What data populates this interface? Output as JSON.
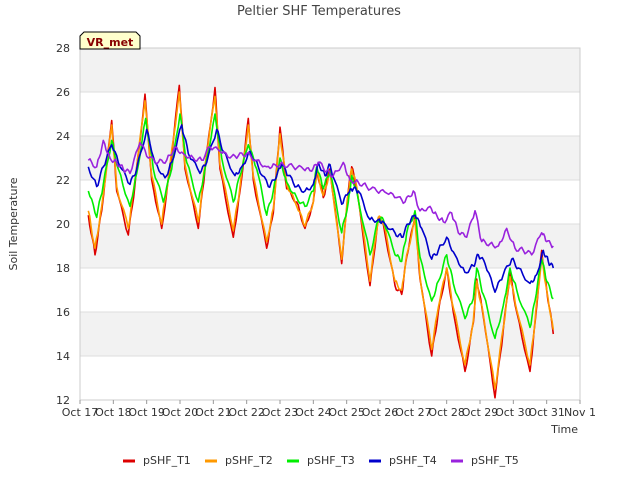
{
  "chart_data": {
    "type": "line",
    "title": "Peltier SHF Temperatures",
    "xlabel": "Time",
    "ylabel": "Soil Temperature",
    "badge": "VR_met",
    "xlim": [
      17,
      32
    ],
    "ylim": [
      12,
      28
    ],
    "x_ticks": [
      {
        "value": 17,
        "label": "Oct 17"
      },
      {
        "value": 18,
        "label": "Oct 18"
      },
      {
        "value": 19,
        "label": "Oct 19"
      },
      {
        "value": 20,
        "label": "Oct 20"
      },
      {
        "value": 21,
        "label": "Oct 21"
      },
      {
        "value": 22,
        "label": "Oct 22"
      },
      {
        "value": 23,
        "label": "Oct 23"
      },
      {
        "value": 24,
        "label": "Oct 24"
      },
      {
        "value": 25,
        "label": "Oct 25"
      },
      {
        "value": 26,
        "label": "Oct 26"
      },
      {
        "value": 27,
        "label": "Oct 27"
      },
      {
        "value": 28,
        "label": "Oct 28"
      },
      {
        "value": 29,
        "label": "Oct 29"
      },
      {
        "value": 30,
        "label": "Oct 30"
      },
      {
        "value": 31,
        "label": "Oct 31"
      },
      {
        "value": 32,
        "label": "Nov 1"
      }
    ],
    "y_ticks": [
      12,
      14,
      16,
      18,
      20,
      22,
      24,
      26,
      28
    ],
    "grid": true,
    "legend_position": "bottom",
    "series": [
      {
        "name": "pSHF_T1",
        "color": "#dd0000",
        "points": [
          [
            17.25,
            20.4
          ],
          [
            17.45,
            18.6
          ],
          [
            17.65,
            20.6
          ],
          [
            17.95,
            24.7
          ],
          [
            18.1,
            21.5
          ],
          [
            18.45,
            19.5
          ],
          [
            18.65,
            21.8
          ],
          [
            18.95,
            25.9
          ],
          [
            19.15,
            22.0
          ],
          [
            19.45,
            19.8
          ],
          [
            19.7,
            22.5
          ],
          [
            19.98,
            26.3
          ],
          [
            20.15,
            22.5
          ],
          [
            20.55,
            19.8
          ],
          [
            20.75,
            22.5
          ],
          [
            21.05,
            26.2
          ],
          [
            21.2,
            22.5
          ],
          [
            21.6,
            19.4
          ],
          [
            21.8,
            21.5
          ],
          [
            22.05,
            24.8
          ],
          [
            22.2,
            22.0
          ],
          [
            22.6,
            18.9
          ],
          [
            22.8,
            20.5
          ],
          [
            23.0,
            24.4
          ],
          [
            23.2,
            21.6
          ],
          [
            23.5,
            21.0
          ],
          [
            23.75,
            19.8
          ],
          [
            24.0,
            21.0
          ],
          [
            24.1,
            22.5
          ],
          [
            24.3,
            21.2
          ],
          [
            24.5,
            22.5
          ],
          [
            24.85,
            18.2
          ],
          [
            25.05,
            21.5
          ],
          [
            25.15,
            22.6
          ],
          [
            25.3,
            21.6
          ],
          [
            25.7,
            17.2
          ],
          [
            25.95,
            20.3
          ],
          [
            26.1,
            20.0
          ],
          [
            26.45,
            17.2
          ],
          [
            26.65,
            16.8
          ],
          [
            26.8,
            18.5
          ],
          [
            27.05,
            20.3
          ],
          [
            27.2,
            17.5
          ],
          [
            27.55,
            14.0
          ],
          [
            27.75,
            16.0
          ],
          [
            28.0,
            18.0
          ],
          [
            28.2,
            16.0
          ],
          [
            28.55,
            13.3
          ],
          [
            28.8,
            15.5
          ],
          [
            28.9,
            17.5
          ],
          [
            29.1,
            15.8
          ],
          [
            29.45,
            12.1
          ],
          [
            29.7,
            15.2
          ],
          [
            29.9,
            17.8
          ],
          [
            30.1,
            16.0
          ],
          [
            30.5,
            13.3
          ],
          [
            30.65,
            15.5
          ],
          [
            30.85,
            18.8
          ],
          [
            31.0,
            17.0
          ],
          [
            31.2,
            15.0
          ]
        ]
      },
      {
        "name": "pSHF_T2",
        "color": "#ff9900",
        "points": [
          [
            17.25,
            20.6
          ],
          [
            17.45,
            18.9
          ],
          [
            17.65,
            20.8
          ],
          [
            17.95,
            24.5
          ],
          [
            18.1,
            21.7
          ],
          [
            18.45,
            19.8
          ],
          [
            18.65,
            22.0
          ],
          [
            18.95,
            25.6
          ],
          [
            19.15,
            22.2
          ],
          [
            19.45,
            20.0
          ],
          [
            19.7,
            22.7
          ],
          [
            19.98,
            26.0
          ],
          [
            20.15,
            22.7
          ],
          [
            20.55,
            20.1
          ],
          [
            20.75,
            22.7
          ],
          [
            21.05,
            25.8
          ],
          [
            21.2,
            22.7
          ],
          [
            21.6,
            19.7
          ],
          [
            21.8,
            21.7
          ],
          [
            22.05,
            24.5
          ],
          [
            22.2,
            22.2
          ],
          [
            22.6,
            19.2
          ],
          [
            22.8,
            20.7
          ],
          [
            23.0,
            24.1
          ],
          [
            23.2,
            21.8
          ],
          [
            23.5,
            20.8
          ],
          [
            23.75,
            19.9
          ],
          [
            24.0,
            21.0
          ],
          [
            24.1,
            22.4
          ],
          [
            24.3,
            21.3
          ],
          [
            24.5,
            22.4
          ],
          [
            24.85,
            18.4
          ],
          [
            25.05,
            21.5
          ],
          [
            25.15,
            22.5
          ],
          [
            25.3,
            21.7
          ],
          [
            25.7,
            17.4
          ],
          [
            25.95,
            20.3
          ],
          [
            26.1,
            20.1
          ],
          [
            26.45,
            17.4
          ],
          [
            26.65,
            17.0
          ],
          [
            26.8,
            18.6
          ],
          [
            27.05,
            20.2
          ],
          [
            27.2,
            17.6
          ],
          [
            27.55,
            14.3
          ],
          [
            27.75,
            16.2
          ],
          [
            28.0,
            18.0
          ],
          [
            28.2,
            16.2
          ],
          [
            28.55,
            13.6
          ],
          [
            28.8,
            15.6
          ],
          [
            28.9,
            17.4
          ],
          [
            29.1,
            15.9
          ],
          [
            29.45,
            12.5
          ],
          [
            29.7,
            15.3
          ],
          [
            29.9,
            17.6
          ],
          [
            30.1,
            16.1
          ],
          [
            30.5,
            13.6
          ],
          [
            30.65,
            15.6
          ],
          [
            30.85,
            18.5
          ],
          [
            31.0,
            17.0
          ],
          [
            31.2,
            15.2
          ]
        ]
      },
      {
        "name": "pSHF_T3",
        "color": "#00ee00",
        "points": [
          [
            17.25,
            21.5
          ],
          [
            17.5,
            20.3
          ],
          [
            17.7,
            21.8
          ],
          [
            17.95,
            23.8
          ],
          [
            18.15,
            22.5
          ],
          [
            18.5,
            20.8
          ],
          [
            18.7,
            22.3
          ],
          [
            18.97,
            24.8
          ],
          [
            19.2,
            22.5
          ],
          [
            19.5,
            21.0
          ],
          [
            19.75,
            22.5
          ],
          [
            20.0,
            25.0
          ],
          [
            20.2,
            22.8
          ],
          [
            20.55,
            21.0
          ],
          [
            20.75,
            22.5
          ],
          [
            21.05,
            25.0
          ],
          [
            21.25,
            23.0
          ],
          [
            21.6,
            21.0
          ],
          [
            21.8,
            22.2
          ],
          [
            22.05,
            23.6
          ],
          [
            22.3,
            22.5
          ],
          [
            22.6,
            20.4
          ],
          [
            22.8,
            21.5
          ],
          [
            23.0,
            23.0
          ],
          [
            23.2,
            21.9
          ],
          [
            23.5,
            21.2
          ],
          [
            23.75,
            20.8
          ],
          [
            24.0,
            21.5
          ],
          [
            24.1,
            22.6
          ],
          [
            24.3,
            21.6
          ],
          [
            24.5,
            22.4
          ],
          [
            24.85,
            19.6
          ],
          [
            25.05,
            21.0
          ],
          [
            25.15,
            22.2
          ],
          [
            25.3,
            21.5
          ],
          [
            25.7,
            18.6
          ],
          [
            25.95,
            20.2
          ],
          [
            26.1,
            20.2
          ],
          [
            26.45,
            18.6
          ],
          [
            26.65,
            18.3
          ],
          [
            26.8,
            19.6
          ],
          [
            27.05,
            20.6
          ],
          [
            27.2,
            18.5
          ],
          [
            27.55,
            16.5
          ],
          [
            27.75,
            17.4
          ],
          [
            28.0,
            18.6
          ],
          [
            28.2,
            17.3
          ],
          [
            28.55,
            15.7
          ],
          [
            28.8,
            16.6
          ],
          [
            28.9,
            18.0
          ],
          [
            29.1,
            16.8
          ],
          [
            29.45,
            14.8
          ],
          [
            29.7,
            16.3
          ],
          [
            29.9,
            18.0
          ],
          [
            30.1,
            17.0
          ],
          [
            30.5,
            15.3
          ],
          [
            30.65,
            16.5
          ],
          [
            30.85,
            18.4
          ],
          [
            31.0,
            17.4
          ],
          [
            31.2,
            16.6
          ]
        ]
      },
      {
        "name": "pSHF_T4",
        "color": "#0000cc",
        "points": [
          [
            17.25,
            22.6
          ],
          [
            17.5,
            21.7
          ],
          [
            17.7,
            22.6
          ],
          [
            17.95,
            23.6
          ],
          [
            18.2,
            22.6
          ],
          [
            18.5,
            21.8
          ],
          [
            18.7,
            22.5
          ],
          [
            19.0,
            24.3
          ],
          [
            19.25,
            22.8
          ],
          [
            19.55,
            22.1
          ],
          [
            19.75,
            22.8
          ],
          [
            20.05,
            24.5
          ],
          [
            20.25,
            23.2
          ],
          [
            20.6,
            22.3
          ],
          [
            20.8,
            22.8
          ],
          [
            21.1,
            24.3
          ],
          [
            21.3,
            23.3
          ],
          [
            21.65,
            22.2
          ],
          [
            21.85,
            22.6
          ],
          [
            22.1,
            23.3
          ],
          [
            22.35,
            22.6
          ],
          [
            22.65,
            21.7
          ],
          [
            22.85,
            22.0
          ],
          [
            23.05,
            22.7
          ],
          [
            23.25,
            22.2
          ],
          [
            23.5,
            21.7
          ],
          [
            23.75,
            21.5
          ],
          [
            24.0,
            21.8
          ],
          [
            24.15,
            22.8
          ],
          [
            24.35,
            22.2
          ],
          [
            24.5,
            22.7
          ],
          [
            24.85,
            20.9
          ],
          [
            25.05,
            21.4
          ],
          [
            25.2,
            21.6
          ],
          [
            25.35,
            21.5
          ],
          [
            25.7,
            20.2
          ],
          [
            25.95,
            20.2
          ],
          [
            26.1,
            20.1
          ],
          [
            26.45,
            19.6
          ],
          [
            26.65,
            19.4
          ],
          [
            26.85,
            20.0
          ],
          [
            27.05,
            20.4
          ],
          [
            27.25,
            19.8
          ],
          [
            27.55,
            18.4
          ],
          [
            27.75,
            18.8
          ],
          [
            28.0,
            19.4
          ],
          [
            28.25,
            18.6
          ],
          [
            28.55,
            17.8
          ],
          [
            28.8,
            18.1
          ],
          [
            28.95,
            18.6
          ],
          [
            29.15,
            18.2
          ],
          [
            29.45,
            16.9
          ],
          [
            29.7,
            17.7
          ],
          [
            29.95,
            18.4
          ],
          [
            30.15,
            18.0
          ],
          [
            30.5,
            17.3
          ],
          [
            30.7,
            17.7
          ],
          [
            30.9,
            18.8
          ],
          [
            31.05,
            18.3
          ],
          [
            31.2,
            18.0
          ]
        ]
      },
      {
        "name": "pSHF_T5",
        "color": "#9922dd",
        "points": [
          [
            17.25,
            22.9
          ],
          [
            17.5,
            22.6
          ],
          [
            17.7,
            23.8
          ],
          [
            17.9,
            23.0
          ],
          [
            18.1,
            22.8
          ],
          [
            18.3,
            22.5
          ],
          [
            18.5,
            22.3
          ],
          [
            18.8,
            23.7
          ],
          [
            19.05,
            23.0
          ],
          [
            19.35,
            22.8
          ],
          [
            19.6,
            22.9
          ],
          [
            19.85,
            23.5
          ],
          [
            20.1,
            23.2
          ],
          [
            20.4,
            23.0
          ],
          [
            20.65,
            22.9
          ],
          [
            20.9,
            23.5
          ],
          [
            21.2,
            23.3
          ],
          [
            21.5,
            23.0
          ],
          [
            21.75,
            23.1
          ],
          [
            22.0,
            23.2
          ],
          [
            22.3,
            22.9
          ],
          [
            22.6,
            22.6
          ],
          [
            22.85,
            22.7
          ],
          [
            23.1,
            22.7
          ],
          [
            23.4,
            22.6
          ],
          [
            23.7,
            22.5
          ],
          [
            23.95,
            22.4
          ],
          [
            24.15,
            22.8
          ],
          [
            24.4,
            22.4
          ],
          [
            24.6,
            22.2
          ],
          [
            24.9,
            22.8
          ],
          [
            25.1,
            22.0
          ],
          [
            25.35,
            21.9
          ],
          [
            25.6,
            21.7
          ],
          [
            25.9,
            21.5
          ],
          [
            26.2,
            21.4
          ],
          [
            26.5,
            21.2
          ],
          [
            26.75,
            21.0
          ],
          [
            27.0,
            21.5
          ],
          [
            27.2,
            20.6
          ],
          [
            27.5,
            20.8
          ],
          [
            27.7,
            20.4
          ],
          [
            27.9,
            20.1
          ],
          [
            28.15,
            20.5
          ],
          [
            28.35,
            19.6
          ],
          [
            28.6,
            19.4
          ],
          [
            28.85,
            20.6
          ],
          [
            29.05,
            19.2
          ],
          [
            29.3,
            19.1
          ],
          [
            29.55,
            19.0
          ],
          [
            29.8,
            19.8
          ],
          [
            30.05,
            18.9
          ],
          [
            30.3,
            18.8
          ],
          [
            30.55,
            18.6
          ],
          [
            30.85,
            19.6
          ],
          [
            31.0,
            19.2
          ],
          [
            31.2,
            19.0
          ]
        ]
      }
    ]
  }
}
